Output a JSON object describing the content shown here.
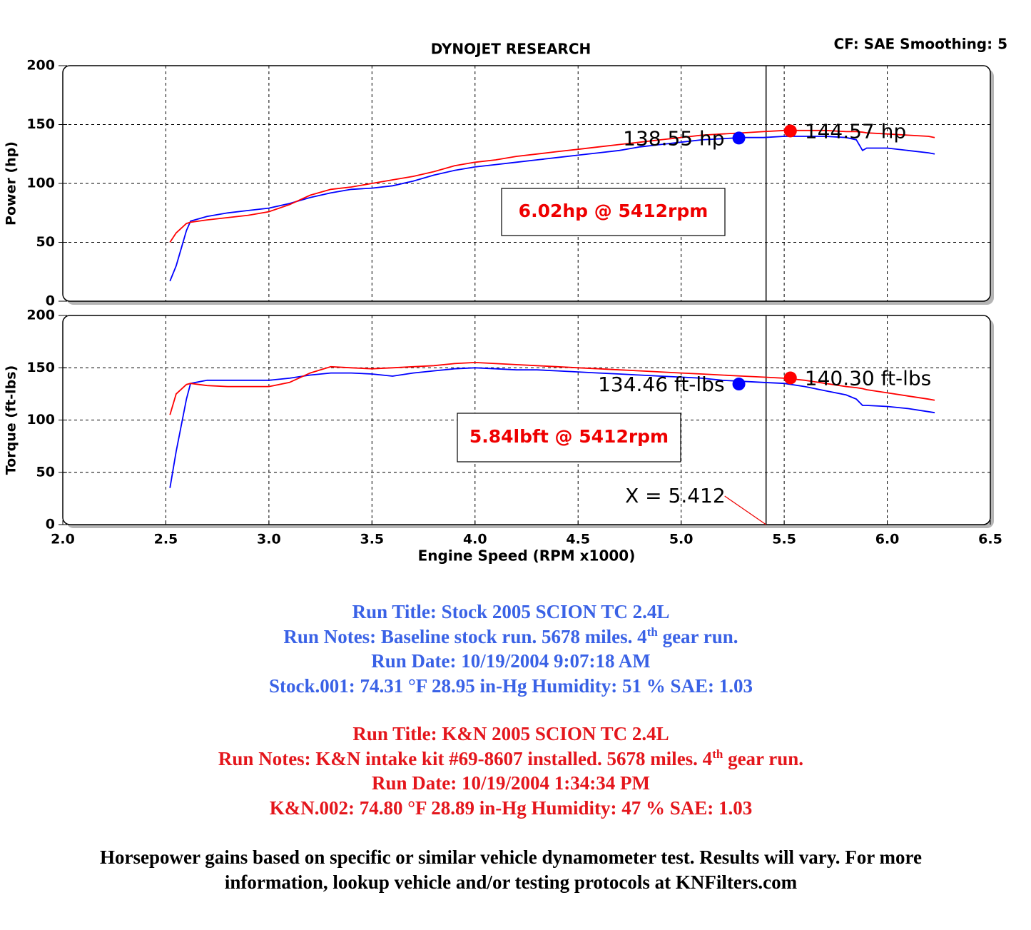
{
  "chart_data": [
    {
      "type": "line",
      "title": "DYNOJET RESEARCH",
      "subtitle": "CF: SAE  Smoothing: 5",
      "y_label": "Power (hp)",
      "x": [
        2.52,
        2.55,
        2.6,
        2.62,
        2.7,
        2.8,
        2.9,
        3.0,
        3.1,
        3.2,
        3.3,
        3.4,
        3.5,
        3.6,
        3.7,
        3.8,
        3.9,
        4.0,
        4.1,
        4.2,
        4.3,
        4.4,
        4.5,
        4.6,
        4.7,
        4.8,
        4.9,
        5.0,
        5.1,
        5.2,
        5.3,
        5.4,
        5.5,
        5.6,
        5.7,
        5.8,
        5.85,
        5.88,
        5.9,
        6.0,
        6.1,
        6.2,
        6.23
      ],
      "series": [
        {
          "name": "Stock",
          "color": "#0000ff",
          "values": [
            17,
            30,
            60,
            68,
            72,
            75,
            77,
            79,
            83,
            88,
            92,
            95,
            96,
            98,
            102,
            107,
            111,
            114,
            116,
            118,
            120,
            122,
            124,
            126,
            128,
            131,
            133,
            135,
            137,
            138,
            139,
            139,
            140,
            140,
            140,
            139,
            137,
            128,
            130,
            130,
            128,
            126,
            125
          ]
        },
        {
          "name": "K&N",
          "color": "#ff0000",
          "values": [
            50,
            58,
            66,
            67,
            69,
            71,
            73,
            76,
            82,
            90,
            95,
            97,
            100,
            103,
            106,
            110,
            115,
            118,
            120,
            123,
            125,
            127,
            129,
            131,
            133,
            135,
            137,
            139,
            141,
            142,
            143,
            144,
            145,
            145,
            145,
            144,
            144,
            143.5,
            143,
            142,
            141,
            140,
            139
          ]
        }
      ],
      "highlights": [
        {
          "x": 5.28,
          "value": 138.55,
          "label": "138.55 hp",
          "color": "#0000ff"
        },
        {
          "x": 5.53,
          "value": 144.57,
          "label": "144.57 hp",
          "color": "#ff0000"
        }
      ],
      "annotation": "6.02hp @ 5412rpm",
      "cursor_x": 5.412,
      "xlim": [
        2.0,
        6.5
      ],
      "ylim": [
        0,
        200
      ],
      "yticks": [
        0,
        50,
        100,
        150,
        200
      ],
      "grid": true
    },
    {
      "type": "line",
      "y_label": "Torque (ft-lbs)",
      "x_label": "Engine Speed (RPM x1000)",
      "x": [
        2.52,
        2.55,
        2.6,
        2.62,
        2.7,
        2.8,
        2.9,
        3.0,
        3.1,
        3.2,
        3.3,
        3.4,
        3.5,
        3.6,
        3.7,
        3.8,
        3.9,
        4.0,
        4.1,
        4.2,
        4.3,
        4.4,
        4.5,
        4.6,
        4.7,
        4.8,
        4.9,
        5.0,
        5.1,
        5.2,
        5.3,
        5.4,
        5.5,
        5.6,
        5.7,
        5.8,
        5.85,
        5.88,
        5.9,
        6.0,
        6.1,
        6.2,
        6.23
      ],
      "series": [
        {
          "name": "Stock",
          "color": "#0000ff",
          "values": [
            35,
            70,
            120,
            135,
            138,
            138,
            138,
            138,
            140,
            143,
            145,
            145,
            144,
            142,
            145,
            147,
            149,
            150,
            149,
            148,
            148,
            147,
            146,
            145,
            144,
            143,
            142,
            141,
            140,
            138,
            137,
            136,
            135,
            132,
            128,
            124,
            120,
            114,
            114,
            113,
            111,
            108,
            107
          ]
        },
        {
          "name": "K&N",
          "color": "#ff0000",
          "values": [
            105,
            125,
            134,
            135,
            133,
            132,
            132,
            132,
            136,
            145,
            151,
            150,
            149,
            150,
            151,
            152,
            154,
            155,
            154,
            153,
            152,
            151,
            150,
            149,
            148,
            147,
            146,
            145,
            144,
            143,
            142,
            141,
            140,
            138,
            135,
            132,
            131,
            130,
            129,
            126,
            123,
            120,
            119
          ]
        }
      ],
      "highlights": [
        {
          "x": 5.28,
          "value": 134.46,
          "label": "134.46 ft-lbs",
          "color": "#0000ff"
        },
        {
          "x": 5.53,
          "value": 140.3,
          "label": "140.30 ft-lbs",
          "color": "#ff0000"
        }
      ],
      "annotation": "5.84lbft @ 5412rpm",
      "cursor": {
        "value": 5.412,
        "label": "X = 5.412"
      },
      "xlim": [
        2.0,
        6.5
      ],
      "xticks": [
        {
          "value": 2.0,
          "label": "2.0"
        },
        {
          "value": 2.5,
          "label": "2.5"
        },
        {
          "value": 3.0,
          "label": "3.0"
        },
        {
          "value": 3.5,
          "label": "3.5"
        },
        {
          "value": 4.0,
          "label": "4.0"
        },
        {
          "value": 4.5,
          "label": "4.5"
        },
        {
          "value": 5.0,
          "label": "5.0"
        },
        {
          "value": 5.5,
          "label": "5.5"
        },
        {
          "value": 6.0,
          "label": "6.0"
        },
        {
          "value": 6.5,
          "label": "6.5"
        }
      ],
      "ylim": [
        0,
        200
      ],
      "yticks": [
        0,
        50,
        100,
        150,
        200
      ],
      "grid": true
    }
  ],
  "stock_run": {
    "title": "Run Title: Stock 2005 SCION TC 2.4L",
    "notes": [
      "Run Notes: Baseline stock run. 5678 miles. 4",
      "th",
      " gear run."
    ],
    "date": "Run Date: 10/19/2004 9:07:18 AM",
    "conditions": "Stock.001: 74.31 °F 28.95 in-Hg Humidity: 51 % SAE: 1.03"
  },
  "kn_run": {
    "title": "Run Title: K&N 2005 SCION TC 2.4L",
    "notes": [
      "Run Notes: K&N intake kit #69-8607 installed. 5678 miles. 4",
      "th",
      " gear run."
    ],
    "date": "Run Date: 10/19/2004 1:34:34 PM",
    "conditions": "K&N.002: 74.80 °F 28.89 in-Hg Humidity: 47 % SAE: 1.03"
  },
  "disclaimer": [
    "Horsepower gains based on specific or similar vehicle dynamometer test. Results will vary. For more",
    "information, lookup vehicle and/or testing protocols at KNFilters.com"
  ]
}
